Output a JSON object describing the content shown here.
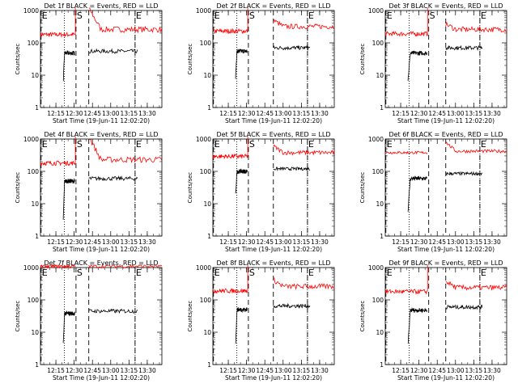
{
  "colors": {
    "events": "#000000",
    "lld": "#ff0000",
    "axes": "#000000",
    "background": "#ffffff"
  },
  "chart_data": [
    {
      "type": "line",
      "title": "Det 1f BLACK = Events, RED = LLD",
      "xlabel": "Start Time (19-Jun-11 12:02:20)",
      "ylabel": "Counts/sec",
      "xlim": [
        "12:02:20",
        "13:42:00"
      ],
      "ylim": [
        1,
        1000
      ],
      "yscale": "log",
      "xticks": [
        "12:15",
        "12:30",
        "12:45",
        "13:00",
        "13:15",
        "13:30"
      ],
      "yticks": [
        "1",
        "10",
        "100",
        "1000"
      ],
      "markers": [
        {
          "label": "E",
          "time": "12:02:50",
          "style": "dashed"
        },
        {
          "label": "",
          "time": "12:22:00",
          "style": "dotted"
        },
        {
          "label": "S",
          "time": "12:31:30",
          "style": "dashed"
        },
        {
          "label": "",
          "time": "12:42:00",
          "style": "dashed"
        },
        {
          "label": "",
          "time": "13:20:00",
          "style": "dotted"
        },
        {
          "label": "E",
          "time": "13:20:00",
          "style": "dashed"
        }
      ],
      "series": [
        {
          "name": "LLD",
          "color": "#ff0000",
          "segments": [
            {
              "start": "12:02:20",
              "end": "12:31:00",
              "level": 180,
              "spike_to": 1200
            },
            {
              "start": "12:42:00",
              "end": "13:42:00",
              "level": 260,
              "peak": 1200,
              "noise": 0.09
            }
          ]
        },
        {
          "name": "Events",
          "color": "#000000",
          "segments": [
            {
              "start": "12:21:00",
              "end": "12:30:30",
              "level": 48,
              "dip_to": 6
            },
            {
              "start": "12:42:00",
              "end": "13:22:00",
              "level": 55,
              "noise": 0.06
            }
          ]
        }
      ]
    },
    {
      "type": "line",
      "title": "Det 2f BLACK = Events, RED = LLD",
      "xlabel": "Start Time (19-Jun-11 12:02:20)",
      "ylabel": "Counts/sec",
      "xlim": [
        "12:02:20",
        "13:42:00"
      ],
      "ylim": [
        1,
        1000
      ],
      "yscale": "log",
      "xticks": [
        "12:15",
        "12:30",
        "12:45",
        "13:00",
        "13:15",
        "13:30"
      ],
      "yticks": [
        "1",
        "10",
        "100",
        "1000"
      ],
      "markers": [
        {
          "label": "E",
          "time": "12:02:50",
          "style": "dashed"
        },
        {
          "label": "",
          "time": "12:22:00",
          "style": "dotted"
        },
        {
          "label": "S",
          "time": "12:31:30",
          "style": "dashed"
        },
        {
          "label": "",
          "time": "12:52:00",
          "style": "dashed"
        },
        {
          "label": "",
          "time": "13:20:00",
          "style": "dotted"
        },
        {
          "label": "E",
          "time": "13:20:00",
          "style": "dashed"
        }
      ],
      "series": [
        {
          "name": "LLD",
          "color": "#ff0000",
          "segments": [
            {
              "start": "12:02:20",
              "end": "12:31:00",
              "level": 230,
              "spike_to": 1200
            },
            {
              "start": "12:52:00",
              "end": "13:42:00",
              "level": 320,
              "peak": 500,
              "noise": 0.08
            }
          ]
        },
        {
          "name": "Events",
          "color": "#000000",
          "segments": [
            {
              "start": "12:21:00",
              "end": "12:30:30",
              "level": 55,
              "dip_to": 9
            },
            {
              "start": "12:52:00",
              "end": "13:22:00",
              "level": 70,
              "noise": 0.06
            }
          ]
        }
      ]
    },
    {
      "type": "line",
      "title": "Det 3f BLACK = Events, RED = LLD",
      "xlabel": "Start Time (19-Jun-11 12:02:20)",
      "ylabel": "Counts/sec",
      "xlim": [
        "12:02:20",
        "13:42:00"
      ],
      "ylim": [
        1,
        1000
      ],
      "yscale": "log",
      "xticks": [
        "12:15",
        "12:30",
        "12:45",
        "13:00",
        "13:15",
        "13:30"
      ],
      "yticks": [
        "1",
        "10",
        "100",
        "1000"
      ],
      "markers": [
        {
          "label": "E",
          "time": "12:02:50",
          "style": "dashed"
        },
        {
          "label": "",
          "time": "12:22:00",
          "style": "dotted"
        },
        {
          "label": "S",
          "time": "12:38:00",
          "style": "dashed"
        },
        {
          "label": "",
          "time": "12:52:00",
          "style": "dashed"
        },
        {
          "label": "",
          "time": "13:20:00",
          "style": "dotted"
        },
        {
          "label": "E",
          "time": "13:20:00",
          "style": "dashed"
        }
      ],
      "series": [
        {
          "name": "LLD",
          "color": "#ff0000",
          "segments": [
            {
              "start": "12:02:20",
              "end": "12:37:00",
              "level": 190,
              "spike_to": 1200
            },
            {
              "start": "12:52:00",
              "end": "13:42:00",
              "level": 260,
              "peak": 380,
              "noise": 0.08
            }
          ]
        },
        {
          "name": "Events",
          "color": "#000000",
          "segments": [
            {
              "start": "12:21:00",
              "end": "12:36:30",
              "level": 48,
              "dip_to": 7
            },
            {
              "start": "12:52:00",
              "end": "13:22:00",
              "level": 70,
              "noise": 0.06
            }
          ]
        }
      ]
    },
    {
      "type": "line",
      "title": "Det 4f BLACK = Events, RED = LLD",
      "xlabel": "Start Time (19-Jun-11 12:02:20)",
      "ylabel": "Counts/sec",
      "xlim": [
        "12:02:20",
        "13:42:00"
      ],
      "ylim": [
        1,
        1000
      ],
      "yscale": "log",
      "xticks": [
        "12:15",
        "12:30",
        "12:45",
        "13:00",
        "13:15",
        "13:30"
      ],
      "yticks": [
        "1",
        "10",
        "100",
        "1000"
      ],
      "markers": [
        {
          "label": "E",
          "time": "12:02:50",
          "style": "dashed"
        },
        {
          "label": "",
          "time": "12:22:00",
          "style": "dotted"
        },
        {
          "label": "S",
          "time": "12:31:30",
          "style": "dashed"
        },
        {
          "label": "",
          "time": "12:42:00",
          "style": "dashed"
        },
        {
          "label": "",
          "time": "13:20:00",
          "style": "dotted"
        },
        {
          "label": "E",
          "time": "13:20:00",
          "style": "dashed"
        }
      ],
      "series": [
        {
          "name": "LLD",
          "color": "#ff0000",
          "segments": [
            {
              "start": "12:02:20",
              "end": "12:31:00",
              "level": 180,
              "spike_to": 1200
            },
            {
              "start": "12:42:00",
              "end": "13:42:00",
              "level": 230,
              "peak": 1200,
              "noise": 0.09
            }
          ]
        },
        {
          "name": "Events",
          "color": "#000000",
          "segments": [
            {
              "start": "12:21:00",
              "end": "12:30:30",
              "level": 50,
              "dip_to": 3
            },
            {
              "start": "12:42:00",
              "end": "13:22:00",
              "level": 60,
              "noise": 0.06
            }
          ]
        }
      ]
    },
    {
      "type": "line",
      "title": "Det 5f BLACK = Events, RED = LLD",
      "xlabel": "Start Time (19-Jun-11 12:02:20)",
      "ylabel": "Counts/sec",
      "xlim": [
        "12:02:20",
        "13:42:00"
      ],
      "ylim": [
        1,
        1000
      ],
      "yscale": "log",
      "xticks": [
        "12:15",
        "12:30",
        "12:45",
        "13:00",
        "13:15",
        "13:30"
      ],
      "yticks": [
        "1",
        "10",
        "100",
        "1000"
      ],
      "markers": [
        {
          "label": "E",
          "time": "12:02:50",
          "style": "dashed"
        },
        {
          "label": "",
          "time": "12:22:00",
          "style": "dotted"
        },
        {
          "label": "S",
          "time": "12:31:30",
          "style": "dashed"
        },
        {
          "label": "",
          "time": "12:52:00",
          "style": "dashed"
        },
        {
          "label": "",
          "time": "13:20:00",
          "style": "dotted"
        },
        {
          "label": "E",
          "time": "13:20:00",
          "style": "dashed"
        }
      ],
      "series": [
        {
          "name": "LLD",
          "color": "#ff0000",
          "segments": [
            {
              "start": "12:02:20",
              "end": "12:31:00",
              "level": 290,
              "spike_to": 1200
            },
            {
              "start": "12:52:00",
              "end": "13:42:00",
              "level": 380,
              "peak": 600,
              "noise": 0.07
            }
          ]
        },
        {
          "name": "Events",
          "color": "#000000",
          "segments": [
            {
              "start": "12:21:00",
              "end": "12:30:30",
              "level": 100,
              "dip_to": 18
            },
            {
              "start": "12:52:00",
              "end": "13:22:00",
              "level": 120,
              "noise": 0.05
            }
          ]
        }
      ]
    },
    {
      "type": "line",
      "title": "Det 6f BLACK = Events, RED = LLD",
      "xlabel": "Start Time (19-Jun-11 12:02:20)",
      "ylabel": "Counts/sec",
      "xlim": [
        "12:02:20",
        "13:42:00"
      ],
      "ylim": [
        1,
        1000
      ],
      "yscale": "log",
      "xticks": [
        "12:15",
        "12:30",
        "12:45",
        "13:00",
        "13:15",
        "13:30"
      ],
      "yticks": [
        "1",
        "10",
        "100",
        "1000"
      ],
      "markers": [
        {
          "label": "E",
          "time": "12:02:50",
          "style": "dashed"
        },
        {
          "label": "",
          "time": "12:22:00",
          "style": "dotted"
        },
        {
          "label": "",
          "time": "12:38:00",
          "style": "dashed"
        },
        {
          "label": "",
          "time": "12:52:00",
          "style": "dashed"
        },
        {
          "label": "",
          "time": "13:20:00",
          "style": "dotted"
        },
        {
          "label": "E",
          "time": "13:20:00",
          "style": "dashed"
        }
      ],
      "series": [
        {
          "name": "LLD",
          "color": "#ff0000",
          "segments": [
            {
              "start": "12:02:20",
              "end": "12:37:00",
              "level": 380,
              "noise": 0.04
            },
            {
              "start": "12:52:00",
              "end": "13:42:00",
              "level": 420,
              "peak": 800,
              "noise": 0.05
            }
          ]
        },
        {
          "name": "Events",
          "color": "#000000",
          "segments": [
            {
              "start": "12:21:00",
              "end": "12:36:30",
              "level": 60,
              "dip_to": 6
            },
            {
              "start": "12:52:00",
              "end": "13:22:00",
              "level": 85,
              "noise": 0.05
            }
          ]
        }
      ]
    },
    {
      "type": "line",
      "title": "Det 7f BLACK = Events, RED = LLD",
      "xlabel": "Start Time (19-Jun-11 12:02:20)",
      "ylabel": "Counts/sec",
      "xlim": [
        "12:02:20",
        "13:42:00"
      ],
      "ylim": [
        1,
        1000
      ],
      "yscale": "log",
      "xticks": [
        "12:15",
        "12:30",
        "12:45",
        "13:00",
        "13:15",
        "13:30"
      ],
      "yticks": [
        "1",
        "10",
        "100",
        "1000"
      ],
      "markers": [
        {
          "label": "E",
          "time": "12:02:50",
          "style": "dashed"
        },
        {
          "label": "",
          "time": "12:22:00",
          "style": "dotted"
        },
        {
          "label": "S",
          "time": "12:31:30",
          "style": "dashed"
        },
        {
          "label": "",
          "time": "12:42:00",
          "style": "dashed"
        },
        {
          "label": "",
          "time": "13:20:00",
          "style": "dotted"
        },
        {
          "label": "E",
          "time": "13:20:00",
          "style": "dashed"
        }
      ],
      "series": [
        {
          "name": "LLD",
          "color": "#ff0000",
          "segments": [
            {
              "start": "12:02:20",
              "end": "12:31:00",
              "level": 1100,
              "noise": 0.06
            },
            {
              "start": "12:42:00",
              "end": "13:42:00",
              "level": 1100,
              "noise": 0.06
            }
          ]
        },
        {
          "name": "Events",
          "color": "#000000",
          "segments": [
            {
              "start": "12:21:00",
              "end": "12:30:30",
              "level": 38,
              "dip_to": 4
            },
            {
              "start": "12:42:00",
              "end": "13:22:00",
              "level": 45,
              "noise": 0.06
            }
          ]
        }
      ]
    },
    {
      "type": "line",
      "title": "Det 8f BLACK = Events, RED = LLD",
      "xlabel": "Start Time (19-Jun-11 12:02:20)",
      "ylabel": "Counts/sec",
      "xlim": [
        "12:02:20",
        "13:42:00"
      ],
      "ylim": [
        1,
        1000
      ],
      "yscale": "log",
      "xticks": [
        "12:15",
        "12:30",
        "12:45",
        "13:00",
        "13:15",
        "13:30"
      ],
      "yticks": [
        "1",
        "10",
        "100",
        "1000"
      ],
      "markers": [
        {
          "label": "E",
          "time": "12:02:50",
          "style": "dashed"
        },
        {
          "label": "",
          "time": "12:22:00",
          "style": "dotted"
        },
        {
          "label": "S",
          "time": "12:31:30",
          "style": "dashed"
        },
        {
          "label": "",
          "time": "12:52:00",
          "style": "dashed"
        },
        {
          "label": "",
          "time": "13:20:00",
          "style": "dotted"
        },
        {
          "label": "E",
          "time": "13:20:00",
          "style": "dashed"
        }
      ],
      "series": [
        {
          "name": "LLD",
          "color": "#ff0000",
          "segments": [
            {
              "start": "12:02:20",
              "end": "12:31:00",
              "level": 190,
              "spike_to": 1200
            },
            {
              "start": "12:52:00",
              "end": "13:42:00",
              "level": 260,
              "peak": 420,
              "noise": 0.08
            }
          ]
        },
        {
          "name": "Events",
          "color": "#000000",
          "segments": [
            {
              "start": "12:21:00",
              "end": "12:30:30",
              "level": 50,
              "dip_to": 4
            },
            {
              "start": "12:52:00",
              "end": "13:22:00",
              "level": 65,
              "noise": 0.06
            }
          ]
        }
      ]
    },
    {
      "type": "line",
      "title": "Det 9f BLACK = Events, RED = LLD",
      "xlabel": "Start Time (19-Jun-11 12:02:20)",
      "ylabel": "Counts/sec",
      "xlim": [
        "12:02:20",
        "13:42:00"
      ],
      "ylim": [
        1,
        1000
      ],
      "yscale": "log",
      "xticks": [
        "12:15",
        "12:30",
        "12:45",
        "13:00",
        "13:15",
        "13:30"
      ],
      "yticks": [
        "1",
        "10",
        "100",
        "1000"
      ],
      "markers": [
        {
          "label": "E",
          "time": "12:02:50",
          "style": "dashed"
        },
        {
          "label": "",
          "time": "12:22:00",
          "style": "dotted"
        },
        {
          "label": "",
          "time": "12:38:00",
          "style": "dashed"
        },
        {
          "label": "",
          "time": "12:52:00",
          "style": "dashed"
        },
        {
          "label": "",
          "time": "13:20:00",
          "style": "dotted"
        },
        {
          "label": "E",
          "time": "13:20:00",
          "style": "dashed"
        }
      ],
      "series": [
        {
          "name": "LLD",
          "color": "#ff0000",
          "segments": [
            {
              "start": "12:02:20",
              "end": "12:37:00",
              "level": 180,
              "spike_to": 1200
            },
            {
              "start": "12:52:00",
              "end": "13:42:00",
              "level": 240,
              "peak": 380,
              "noise": 0.08
            }
          ]
        },
        {
          "name": "Events",
          "color": "#000000",
          "segments": [
            {
              "start": "12:21:00",
              "end": "12:36:30",
              "level": 48,
              "dip_to": 4
            },
            {
              "start": "12:52:00",
              "end": "13:22:00",
              "level": 60,
              "noise": 0.06
            }
          ]
        }
      ]
    }
  ]
}
